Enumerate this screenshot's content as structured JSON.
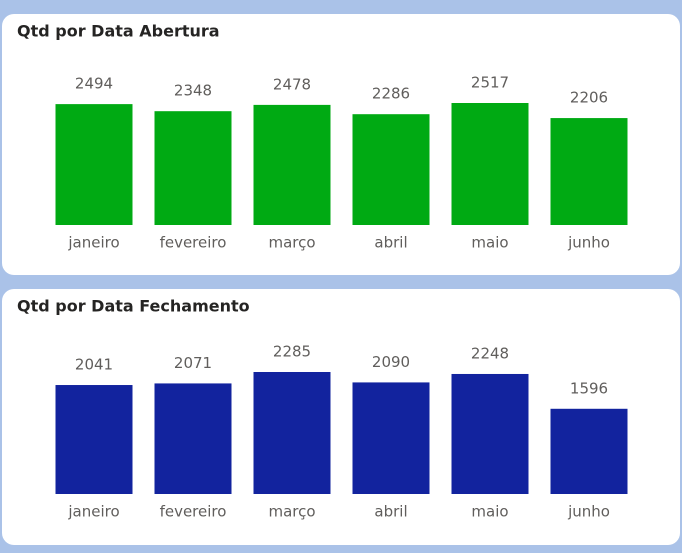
{
  "chart_data": [
    {
      "type": "bar",
      "title": "Qtd por Data Abertura",
      "categories": [
        "janeiro",
        "fevereiro",
        "março",
        "abril",
        "maio",
        "junho"
      ],
      "values": [
        2494,
        2348,
        2478,
        2286,
        2517,
        2206
      ],
      "color": "#00aa13"
    },
    {
      "type": "bar",
      "title": "Qtd por Data Fechamento",
      "categories": [
        "janeiro",
        "fevereiro",
        "março",
        "abril",
        "maio",
        "junho"
      ],
      "values": [
        2041,
        2071,
        2285,
        2090,
        2248,
        1596
      ],
      "color": "#12239e"
    }
  ]
}
